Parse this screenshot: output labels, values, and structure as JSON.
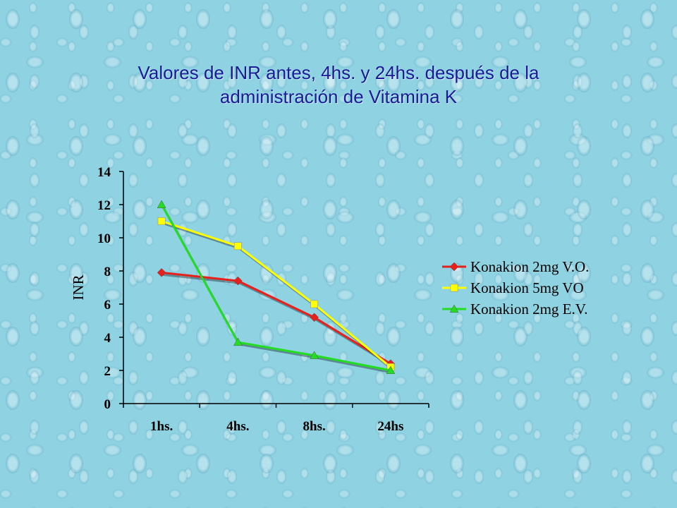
{
  "slide": {
    "title_line1": "Valores de INR antes, 4hs. y 24hs. después de la",
    "title_line2": "administración de Vitamina K"
  },
  "chart_data": {
    "type": "line",
    "title": "Valores de INR antes, 4hs. y 24hs. después de la administración de Vitamina K",
    "xlabel": "",
    "ylabel": "INR",
    "categories": [
      "1hs.",
      "4hs.",
      "8hs.",
      "24hs"
    ],
    "ylim": [
      0,
      14
    ],
    "yticks": [
      0,
      2,
      4,
      6,
      8,
      10,
      12,
      14
    ],
    "grid": false,
    "legend_position": "right",
    "series": [
      {
        "name": "Konakion 2mg V.O.",
        "values": [
          7.9,
          7.4,
          5.2,
          2.4
        ],
        "color": "#e8201c",
        "marker": "diamond"
      },
      {
        "name": "Konakion 5mg VO",
        "values": [
          11.0,
          9.5,
          6.0,
          2.2
        ],
        "color": "#ffff00",
        "marker": "square"
      },
      {
        "name": "Konakion 2mg E.V.",
        "values": [
          12.0,
          3.7,
          2.9,
          2.0
        ],
        "color": "#22dd22",
        "marker": "triangle"
      }
    ]
  }
}
